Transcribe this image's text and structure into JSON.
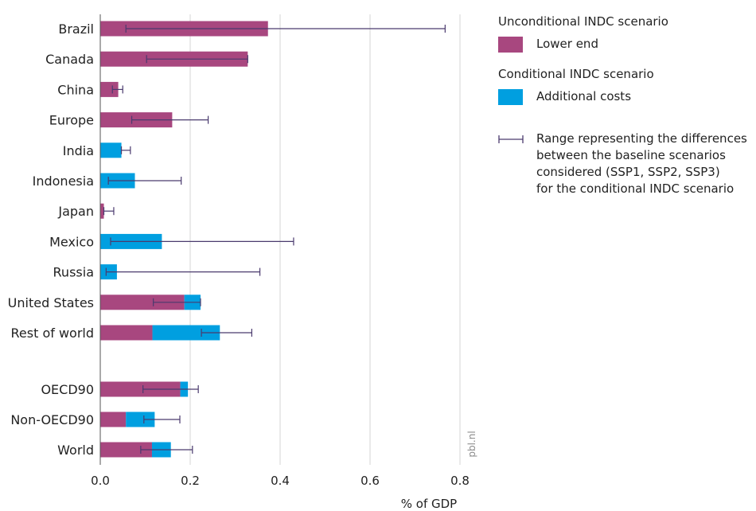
{
  "legend": {
    "unconditional_heading": "Unconditional INDC scenario",
    "lower_end_label": "Lower end",
    "conditional_heading": "Conditional INDC scenario",
    "additional_costs_label": "Additional costs",
    "range_label": "Range representing the differences\nbetween the baseline scenarios\nconsidered (SSP1, SSP2, SSP3)\nfor the conditional INDC scenario"
  },
  "watermark": "pbl.nl",
  "chart_data": {
    "type": "bar",
    "orientation": "horizontal",
    "stacked": true,
    "categories": [
      "Brazil",
      "Canada",
      "China",
      "Europe",
      "India",
      "Indonesia",
      "Japan",
      "Mexico",
      "Russia",
      "United States",
      "Rest of world",
      "OECD90",
      "Non-OECD90",
      "World"
    ],
    "category_groups": [
      [
        0,
        10
      ],
      [
        11,
        13
      ]
    ],
    "series": [
      {
        "name": "Lower end",
        "group": "Unconditional INDC scenario",
        "color": "#a8477f",
        "values": [
          0.373,
          0.328,
          0.04,
          0.16,
          0,
          0,
          0.008,
          0,
          0,
          0.187,
          0.116,
          0.178,
          0.057,
          0.115
        ]
      },
      {
        "name": "Additional costs",
        "group": "Conditional INDC scenario",
        "color": "#009fe0",
        "values": [
          0,
          0,
          0,
          0,
          0.047,
          0.077,
          0,
          0.137,
          0.037,
          0.036,
          0.15,
          0.017,
          0.064,
          0.042
        ]
      }
    ],
    "range": {
      "name": "Range representing the differences between the baseline scenarios considered (SSP1, SSP2, SSP3) for the conditional INDC scenario",
      "color": "#4a3a6e",
      "low": [
        0.057,
        0.103,
        0.027,
        0.07,
        0.047,
        0.018,
        0.008,
        0.023,
        0.013,
        0.118,
        0.225,
        0.095,
        0.097,
        0.09
      ],
      "high": [
        0.767,
        0.328,
        0.05,
        0.24,
        0.067,
        0.18,
        0.03,
        0.43,
        0.355,
        0.223,
        0.337,
        0.218,
        0.177,
        0.205
      ]
    },
    "x_ticks": [
      "0.0",
      "0.2",
      "0.4",
      "0.6",
      "0.8"
    ],
    "xlim": [
      0,
      0.8
    ],
    "xlabel": "% of GDP",
    "ylabel": "",
    "grid": true,
    "legend_position": "right"
  }
}
